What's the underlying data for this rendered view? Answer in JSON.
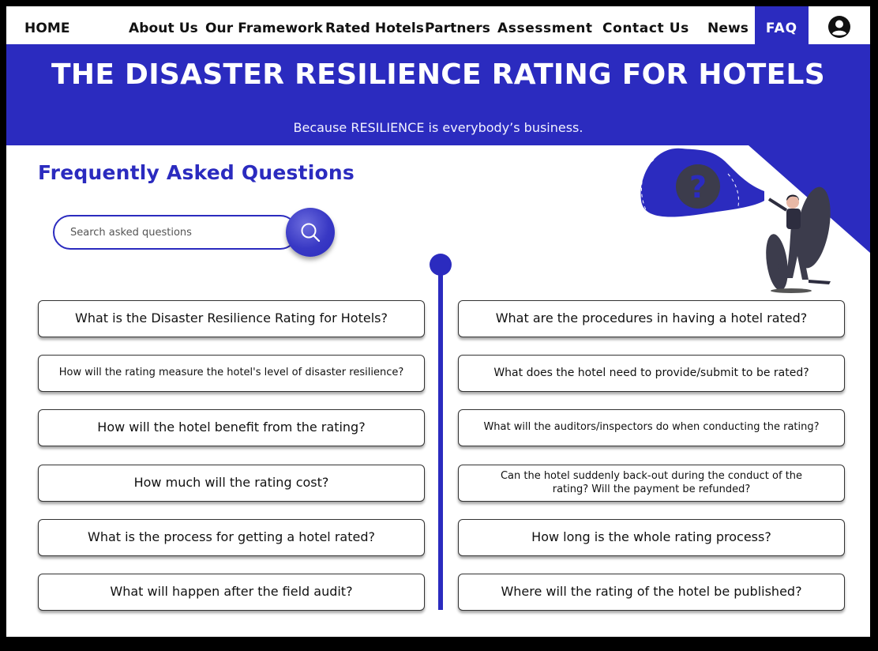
{
  "nav": {
    "home": "HOME",
    "about": "About Us",
    "framework": "Our Framework",
    "rated": "Rated Hotels",
    "partners": "Partners",
    "assessment": "Assessment",
    "contact": "Contact Us",
    "news": "News",
    "faq": "FAQ",
    "user_icon": "user-account-icon"
  },
  "hero": {
    "title": "THE DISASTER RESILIENCE RATING FOR HOTELS",
    "subtitle": "Because RESILIENCE is everybody’s business."
  },
  "faq": {
    "title": "Frequently Asked Questions",
    "search_placeholder": "Search asked questions",
    "search_icon": "search-icon"
  },
  "questions": {
    "left": [
      "What is the Disaster Resilience Rating for Hotels?",
      "How will the rating measure the hotel's level of disaster resilience?",
      "How will the hotel benefit from the rating?",
      "How much will the rating cost?",
      "What is the process for getting a hotel rated?",
      "What will happen after the field audit?"
    ],
    "right": [
      "What are the procedures in having a hotel rated?",
      "What does the hotel need to provide/submit to be rated?",
      "What will the auditors/inspectors do when conducting the rating?",
      "Can the hotel suddenly back-out during the conduct of the rating? Will the payment be refunded?",
      "How long is the whole rating process?",
      "Where will the rating of the hotel be published?"
    ]
  },
  "colors": {
    "brand": "#2b2bbf",
    "background": "#ffffff",
    "text": "#111111"
  }
}
